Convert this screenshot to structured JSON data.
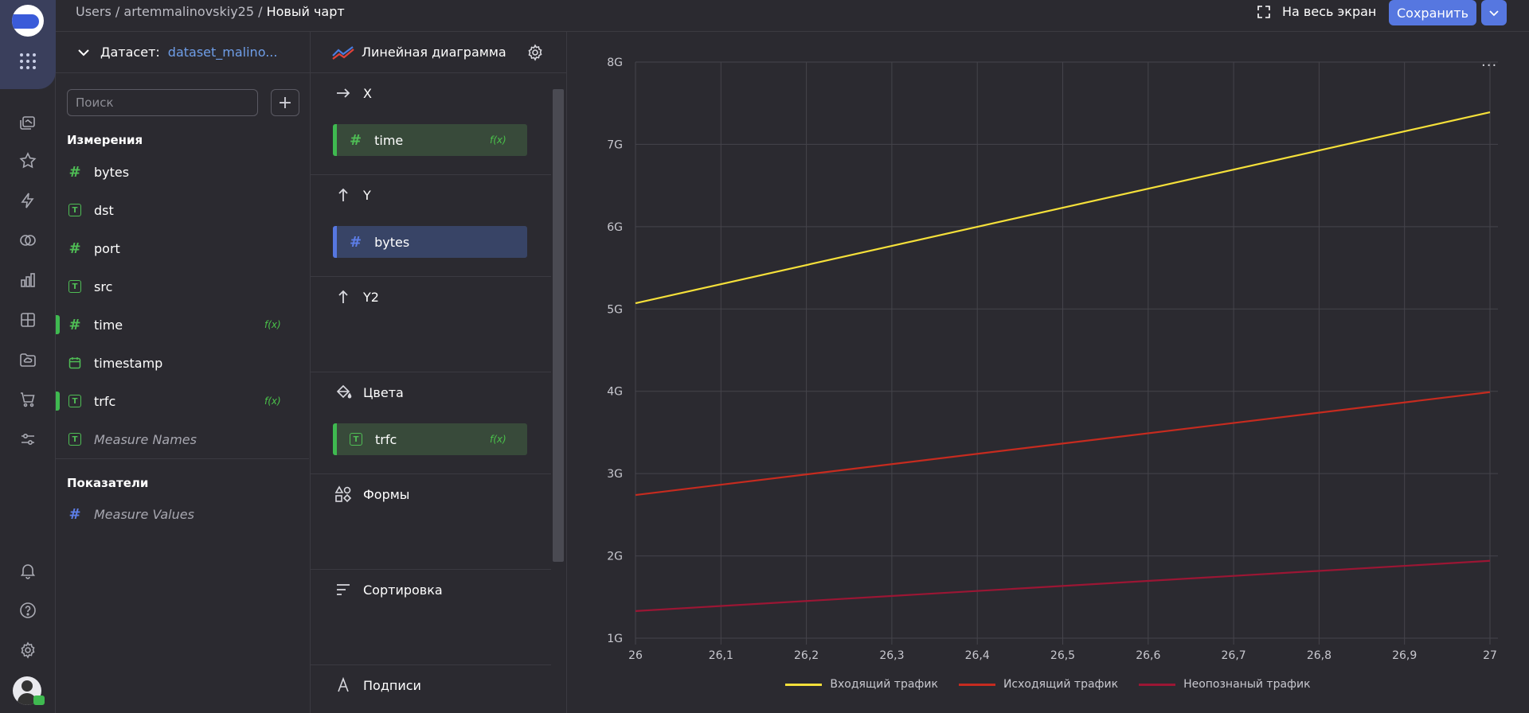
{
  "breadcrumb": {
    "users": "Users",
    "sep1": "/",
    "user": "artemmalinovskiy25",
    "sep2": "/",
    "current": "Новый чарт"
  },
  "header": {
    "fullscreen_label": "На весь экран",
    "save_label": "Сохранить"
  },
  "dataset": {
    "label": "Датасет:",
    "name": "dataset_malino...",
    "search_placeholder": "Поиск",
    "dimensions_title": "Измерения",
    "dimensions": [
      {
        "name": "bytes",
        "type": "number",
        "used": false,
        "fx": ""
      },
      {
        "name": "dst",
        "type": "text",
        "used": false,
        "fx": ""
      },
      {
        "name": "port",
        "type": "number",
        "used": false,
        "fx": ""
      },
      {
        "name": "src",
        "type": "text",
        "used": false,
        "fx": ""
      },
      {
        "name": "time",
        "type": "number",
        "used": true,
        "fx": "f(x)"
      },
      {
        "name": "timestamp",
        "type": "date",
        "used": false,
        "fx": ""
      },
      {
        "name": "trfc",
        "type": "text",
        "used": true,
        "fx": "f(x)"
      },
      {
        "name": "Measure Names",
        "type": "text",
        "used": false,
        "fx": ""
      }
    ],
    "measures_title": "Показатели",
    "measures": [
      {
        "name": "Measure Values",
        "type": "number"
      }
    ]
  },
  "wizard": {
    "chart_type": "Линейная диаграмма",
    "x_label": "X",
    "x_field": "time",
    "x_fx": "f(x)",
    "y_label": "Y",
    "y_field": "bytes",
    "y2_label": "Y2",
    "colors_label": "Цвета",
    "colors_field": "trfc",
    "colors_fx": "f(x)",
    "shapes_label": "Формы",
    "sort_label": "Сортировка",
    "labels_label": "Подписи"
  },
  "chart_data": {
    "type": "line",
    "x": [
      26,
      27
    ],
    "x_ticks": [
      "26",
      "26,1",
      "26,2",
      "26,3",
      "26,4",
      "26,5",
      "26,6",
      "26,7",
      "26,8",
      "26,9",
      "27"
    ],
    "y_ticks": [
      "1G",
      "2G",
      "3G",
      "4G",
      "5G",
      "6G",
      "7G",
      "8G"
    ],
    "ylim": [
      1,
      8
    ],
    "y_unit": "G",
    "grid": true,
    "legend_position": "bottom-center",
    "series": [
      {
        "name": "Входящий трафик",
        "values": [
          5.07,
          7.39
        ],
        "color": "#f5e03a"
      },
      {
        "name": "Исходящий трафик",
        "values": [
          2.74,
          3.99
        ],
        "color": "#c62b1f"
      },
      {
        "name": "Неопознаный трафик",
        "values": [
          1.33,
          1.94
        ],
        "color": "#9b1634"
      }
    ]
  },
  "chart_menu_icon": "more-horizontal-icon"
}
